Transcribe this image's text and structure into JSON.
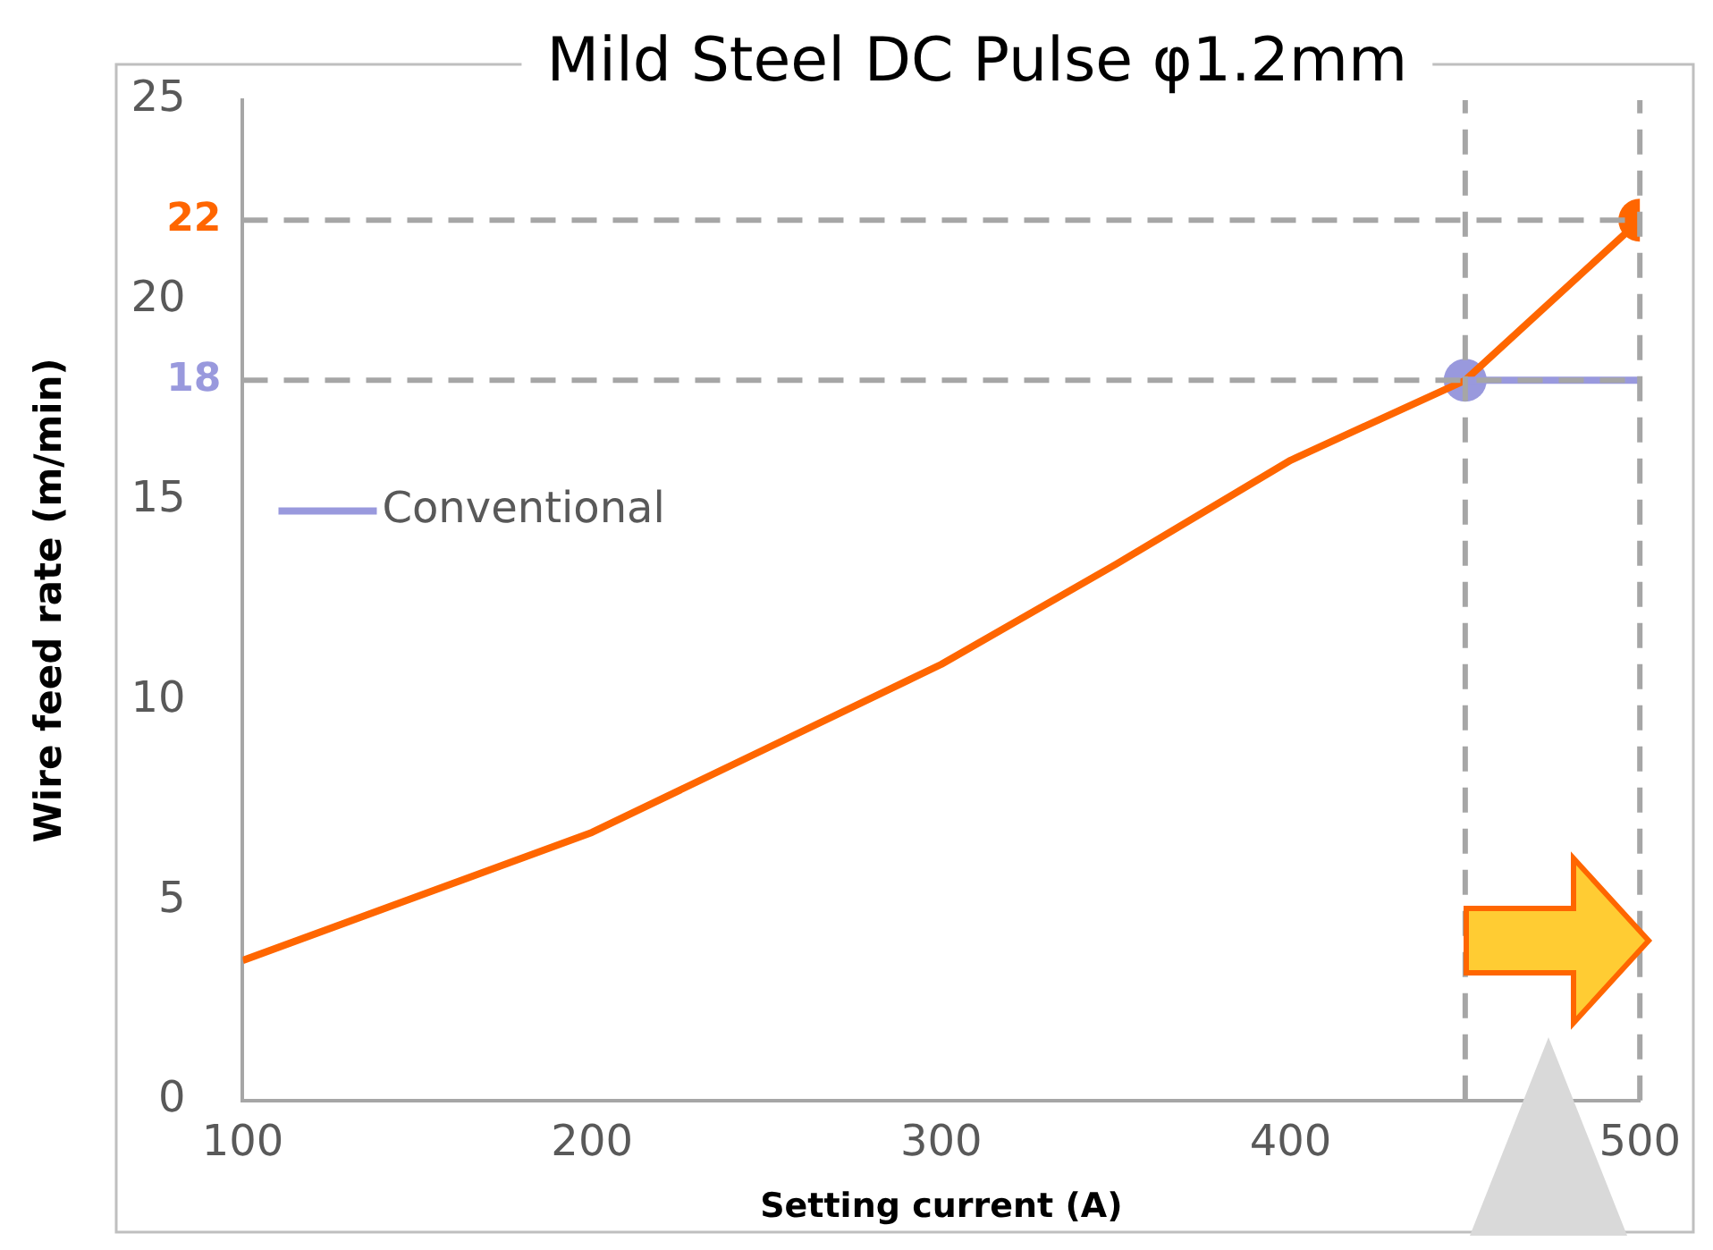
{
  "chart_data": {
    "type": "line",
    "title": "Mild Steel DC Pulse φ1.2mm",
    "xlabel": "Setting current (A)",
    "ylabel": "Wire feed rate (m/min)",
    "xlim": [
      100,
      500
    ],
    "xticks": [
      100,
      200,
      300,
      400,
      500
    ],
    "ylim": [
      0,
      25
    ],
    "yticks": [
      0,
      5,
      10,
      15,
      20,
      25
    ],
    "grid": false,
    "legend": "left",
    "line_style": "solid",
    "series": [
      {
        "name": "Conventional",
        "color": "#9999dd",
        "x": [
          450,
          500
        ],
        "values": [
          18,
          18
        ]
      },
      {
        "color": "#ff6600",
        "x": [
          100,
          200,
          250,
          300,
          350,
          400,
          450,
          500
        ],
        "values": [
          3.5,
          6.7,
          8.8,
          10.9,
          13.4,
          16,
          18,
          22
        ]
      },
      {
        "type": "scatter",
        "color": "#9999dd",
        "x": [
          450
        ],
        "values": [
          18
        ]
      },
      {
        "type": "scatter",
        "color": "#ff6600",
        "x": [
          500
        ],
        "values": [
          22
        ]
      }
    ],
    "ref_lines": [
      {
        "axis": "y",
        "value": 22,
        "label": "22",
        "color": "#a6a6a6",
        "line_style": "dashed"
      },
      {
        "axis": "y",
        "value": 18,
        "label": "18",
        "color": "#a6a6a6",
        "line_style": "dashed"
      },
      {
        "axis": "x",
        "value": 450,
        "color": "#a6a6a6",
        "line_style": "dashed"
      },
      {
        "axis": "x",
        "value": 500,
        "color": "#a6a6a6",
        "line_style": "dashed"
      }
    ]
  }
}
